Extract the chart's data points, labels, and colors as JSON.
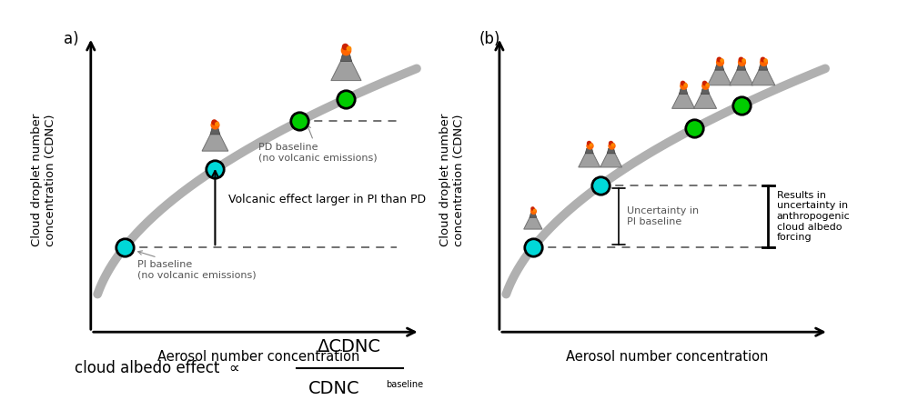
{
  "panel_a_label": "a)",
  "panel_b_label": "(b)",
  "ylabel": "Cloud droplet number\nconcentration (CDNC)",
  "xlabel": "Aerosol number concentration",
  "curve_color": "#b0b0b0",
  "curve_lw": 7,
  "cyan_color": "#00d8d8",
  "green_color": "#00cc00",
  "dot_edgecolor": "#000000",
  "dot_size": 14,
  "dashed_color": "#666666",
  "background": "#ffffff",
  "formula_box_bg": "#d0d0d0",
  "formula_box_edge": "#333333"
}
